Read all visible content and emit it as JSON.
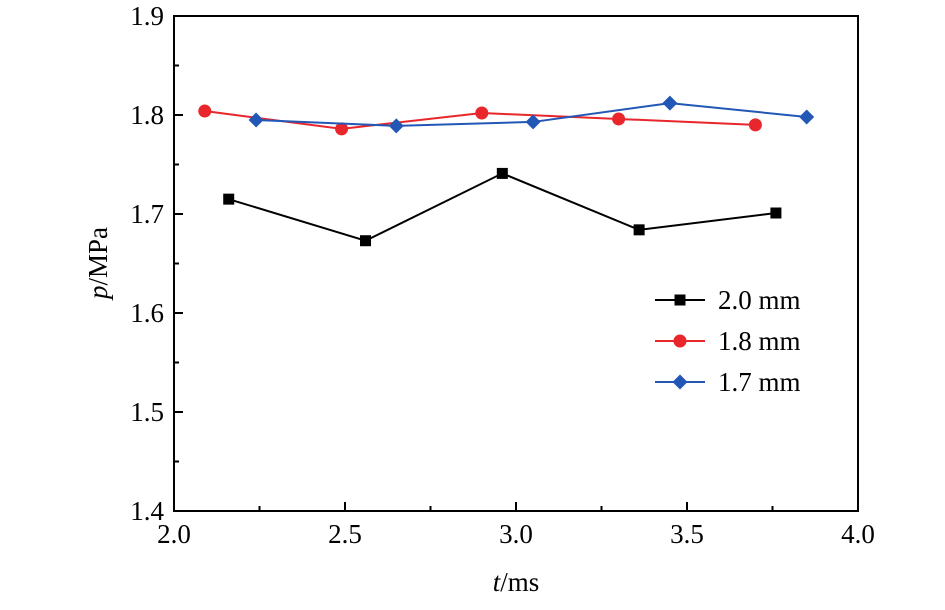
{
  "chart_data": {
    "type": "line",
    "xlabel_italic": "t",
    "xlabel_unit": "/ms",
    "ylabel_italic": "p",
    "ylabel_unit": "/MPa",
    "xlim": [
      2.0,
      4.0
    ],
    "ylim": [
      1.4,
      1.9
    ],
    "xticks": [
      "2.0",
      "2.5",
      "3.0",
      "3.5",
      "4.0"
    ],
    "yticks": [
      "1.4",
      "1.5",
      "1.6",
      "1.7",
      "1.8",
      "1.9"
    ],
    "grid": false,
    "legend_position": "right",
    "series": [
      {
        "name": "2.0 mm",
        "color": "#000000",
        "marker": "square",
        "x": [
          2.16,
          2.56,
          2.96,
          3.36,
          3.76
        ],
        "y": [
          1.715,
          1.673,
          1.741,
          1.684,
          1.701
        ]
      },
      {
        "name": "1.8 mm",
        "color": "#e8262b",
        "marker": "circle",
        "x": [
          2.09,
          2.49,
          2.9,
          3.3,
          3.7
        ],
        "y": [
          1.804,
          1.786,
          1.802,
          1.796,
          1.79
        ]
      },
      {
        "name": "1.7 mm",
        "color": "#2257b6",
        "marker": "diamond",
        "x": [
          2.24,
          2.65,
          3.05,
          3.45,
          3.85
        ],
        "y": [
          1.795,
          1.789,
          1.793,
          1.812,
          1.798
        ]
      }
    ]
  }
}
